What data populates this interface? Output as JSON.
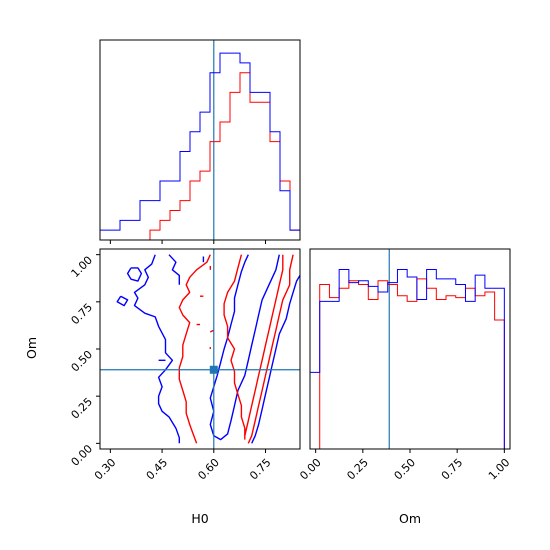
{
  "chart_data": {
    "type": "corner",
    "colors": {
      "series_a": "#0000ff",
      "series_b": "#ff0000",
      "truth": "#1f77b4"
    },
    "truth": {
      "H0": 0.6,
      "Om": 0.39
    },
    "x_ticks_H0": [
      "0.30",
      "0.45",
      "0.60",
      "0.75"
    ],
    "x_tick_values_H0": [
      0.3,
      0.45,
      0.6,
      0.75
    ],
    "x_ticks_Om": [
      "0.00",
      "0.25",
      "0.50",
      "0.75",
      "1.00"
    ],
    "x_tick_values_Om": [
      0.0,
      0.25,
      0.5,
      0.75,
      1.0
    ],
    "y_ticks_Om": [
      "0.00",
      "0.25",
      "0.50",
      "0.75",
      "1.00"
    ],
    "y_tick_values_Om": [
      0.0,
      0.25,
      0.5,
      0.75,
      1.0
    ],
    "xlabel_H0": "H0",
    "xlabel_Om": "Om",
    "ylabel_Om": "Om",
    "H0_range": [
      0.27,
      0.85
    ],
    "Om_range": [
      -0.03,
      1.03
    ],
    "H0_bins": [
      0.27,
      0.299,
      0.328,
      0.357,
      0.386,
      0.415,
      0.444,
      0.473,
      0.502,
      0.531,
      0.56,
      0.589,
      0.618,
      0.647,
      0.676,
      0.705,
      0.734,
      0.763,
      0.792,
      0.821,
      0.85
    ],
    "hist_H0_blue": [
      1,
      1,
      2,
      2,
      4,
      4,
      6,
      6,
      9,
      11,
      13,
      17,
      19,
      19,
      18,
      15,
      15,
      11,
      5,
      1
    ],
    "hist_H0_red": [
      0,
      0,
      0,
      0,
      0,
      1,
      2,
      3,
      4,
      6,
      7,
      10,
      12,
      15,
      17,
      14,
      14,
      10,
      6,
      1
    ],
    "Om_bins": [
      -0.03,
      0.0215,
      0.073,
      0.1245,
      0.176,
      0.2275,
      0.279,
      0.3305,
      0.382,
      0.4335,
      0.485,
      0.5365,
      0.588,
      0.6395,
      0.691,
      0.7425,
      0.794,
      0.8455,
      0.897,
      0.9485,
      1.0
    ],
    "hist_Om_blue": [
      0.41,
      0.79,
      0.79,
      0.96,
      0.89,
      0.9,
      0.87,
      0.84,
      0.89,
      0.96,
      0.92,
      0.8,
      0.96,
      0.91,
      0.91,
      0.88,
      0.79,
      0.93,
      0.86,
      0.86
    ],
    "hist_Om_red": [
      0.0,
      0.88,
      0.81,
      0.86,
      0.9,
      0.88,
      0.8,
      0.9,
      0.88,
      0.82,
      0.79,
      0.91,
      0.86,
      0.8,
      0.82,
      0.81,
      0.86,
      0.82,
      0.84,
      0.69
    ],
    "contours": [
      {
        "series": "series_a",
        "level": "outer-left",
        "points": [
          [
            0.43,
            1.0
          ],
          [
            0.42,
            0.95
          ],
          [
            0.4,
            0.92
          ],
          [
            0.41,
            0.88
          ],
          [
            0.4,
            0.84
          ],
          [
            0.37,
            0.8
          ],
          [
            0.38,
            0.77
          ],
          [
            0.37,
            0.73
          ],
          [
            0.4,
            0.69
          ],
          [
            0.43,
            0.67
          ],
          [
            0.44,
            0.62
          ],
          [
            0.46,
            0.55
          ],
          [
            0.46,
            0.48
          ],
          [
            0.48,
            0.44
          ],
          [
            0.46,
            0.39
          ],
          [
            0.44,
            0.35
          ],
          [
            0.45,
            0.3
          ],
          [
            0.44,
            0.25
          ],
          [
            0.44,
            0.21
          ],
          [
            0.45,
            0.17
          ],
          [
            0.47,
            0.14
          ],
          [
            0.49,
            0.08
          ],
          [
            0.5,
            0.03
          ],
          [
            0.5,
            0.0
          ]
        ]
      },
      {
        "series": "series_a",
        "level": "outer-left-2",
        "points": [
          [
            0.47,
            1.0
          ],
          [
            0.49,
            0.96
          ],
          [
            0.48,
            0.92
          ],
          [
            0.5,
            0.89
          ],
          [
            0.5,
            0.84
          ]
        ]
      },
      {
        "series": "series_a",
        "level": "outer-left-3",
        "points": [
          [
            0.36,
            0.93
          ],
          [
            0.35,
            0.9
          ],
          [
            0.36,
            0.87
          ],
          [
            0.38,
            0.86
          ],
          [
            0.39,
            0.9
          ],
          [
            0.38,
            0.93
          ],
          [
            0.36,
            0.93
          ]
        ]
      },
      {
        "series": "series_a",
        "level": "outer-left-4",
        "points": [
          [
            0.33,
            0.78
          ],
          [
            0.32,
            0.75
          ],
          [
            0.34,
            0.73
          ],
          [
            0.35,
            0.76
          ],
          [
            0.33,
            0.78
          ]
        ]
      },
      {
        "series": "series_a",
        "level": "outer-right",
        "points": [
          [
            0.85,
            0.89
          ],
          [
            0.84,
            0.86
          ],
          [
            0.83,
            0.8
          ],
          [
            0.82,
            0.74
          ],
          [
            0.81,
            0.66
          ],
          [
            0.79,
            0.58
          ],
          [
            0.78,
            0.5
          ],
          [
            0.77,
            0.42
          ],
          [
            0.76,
            0.34
          ],
          [
            0.75,
            0.26
          ],
          [
            0.74,
            0.18
          ],
          [
            0.73,
            0.1
          ],
          [
            0.72,
            0.04
          ],
          [
            0.71,
            0.0
          ]
        ]
      },
      {
        "series": "series_a",
        "level": "inner",
        "points": [
          [
            0.7,
            1.0
          ],
          [
            0.69,
            0.96
          ],
          [
            0.68,
            0.91
          ],
          [
            0.67,
            0.84
          ],
          [
            0.66,
            0.77
          ],
          [
            0.66,
            0.7
          ],
          [
            0.65,
            0.63
          ],
          [
            0.64,
            0.56
          ],
          [
            0.63,
            0.5
          ],
          [
            0.62,
            0.43
          ],
          [
            0.61,
            0.36
          ],
          [
            0.6,
            0.3
          ],
          [
            0.59,
            0.24
          ],
          [
            0.6,
            0.17
          ],
          [
            0.59,
            0.1
          ],
          [
            0.6,
            0.04
          ],
          [
            0.62,
            0.02
          ],
          [
            0.64,
            0.05
          ],
          [
            0.65,
            0.12
          ],
          [
            0.66,
            0.2
          ],
          [
            0.67,
            0.28
          ],
          [
            0.69,
            0.36
          ],
          [
            0.7,
            0.44
          ],
          [
            0.71,
            0.52
          ],
          [
            0.72,
            0.6
          ],
          [
            0.73,
            0.68
          ],
          [
            0.74,
            0.76
          ],
          [
            0.76,
            0.84
          ],
          [
            0.78,
            0.92
          ],
          [
            0.79,
            1.0
          ]
        ]
      },
      {
        "series": "series_a",
        "level": "dash-1",
        "points": [
          [
            0.44,
            0.44
          ],
          [
            0.46,
            0.44
          ]
        ]
      },
      {
        "series": "series_b",
        "level": "outer-left",
        "points": [
          [
            0.59,
            1.0
          ],
          [
            0.58,
            0.96
          ],
          [
            0.55,
            0.92
          ],
          [
            0.53,
            0.88
          ],
          [
            0.52,
            0.84
          ],
          [
            0.53,
            0.8
          ],
          [
            0.51,
            0.76
          ],
          [
            0.5,
            0.72
          ],
          [
            0.51,
            0.68
          ],
          [
            0.53,
            0.64
          ],
          [
            0.52,
            0.58
          ],
          [
            0.51,
            0.52
          ],
          [
            0.51,
            0.46
          ],
          [
            0.5,
            0.4
          ],
          [
            0.5,
            0.34
          ],
          [
            0.51,
            0.28
          ],
          [
            0.52,
            0.22
          ],
          [
            0.52,
            0.16
          ],
          [
            0.53,
            0.1
          ],
          [
            0.54,
            0.05
          ],
          [
            0.55,
            0.0
          ]
        ]
      },
      {
        "series": "series_b",
        "level": "outer-right",
        "points": [
          [
            0.83,
            1.0
          ],
          [
            0.82,
            0.92
          ],
          [
            0.82,
            0.84
          ],
          [
            0.8,
            0.76
          ],
          [
            0.79,
            0.68
          ],
          [
            0.78,
            0.6
          ],
          [
            0.77,
            0.52
          ],
          [
            0.76,
            0.44
          ],
          [
            0.75,
            0.36
          ],
          [
            0.74,
            0.28
          ],
          [
            0.73,
            0.2
          ],
          [
            0.72,
            0.12
          ],
          [
            0.71,
            0.04
          ],
          [
            0.7,
            0.0
          ]
        ]
      },
      {
        "series": "series_b",
        "level": "inner",
        "points": [
          [
            0.68,
            1.0
          ],
          [
            0.67,
            0.93
          ],
          [
            0.66,
            0.86
          ],
          [
            0.64,
            0.8
          ],
          [
            0.63,
            0.74
          ],
          [
            0.63,
            0.68
          ],
          [
            0.64,
            0.62
          ],
          [
            0.64,
            0.56
          ],
          [
            0.66,
            0.5
          ],
          [
            0.65,
            0.44
          ],
          [
            0.66,
            0.38
          ],
          [
            0.66,
            0.32
          ],
          [
            0.67,
            0.26
          ],
          [
            0.68,
            0.2
          ],
          [
            0.68,
            0.14
          ],
          [
            0.69,
            0.08
          ],
          [
            0.69,
            0.02
          ]
        ]
      },
      {
        "series": "series_b",
        "level": "inner-right",
        "points": [
          [
            0.8,
            1.0
          ],
          [
            0.8,
            0.92
          ],
          [
            0.79,
            0.84
          ],
          [
            0.78,
            0.76
          ],
          [
            0.77,
            0.68
          ],
          [
            0.76,
            0.6
          ],
          [
            0.75,
            0.52
          ],
          [
            0.74,
            0.44
          ],
          [
            0.73,
            0.36
          ],
          [
            0.72,
            0.28
          ],
          [
            0.71,
            0.2
          ],
          [
            0.7,
            0.12
          ],
          [
            0.69,
            0.04
          ]
        ]
      },
      {
        "series": "series_b",
        "level": "dash-1",
        "points": [
          [
            0.56,
            0.78
          ],
          [
            0.57,
            0.78
          ]
        ]
      },
      {
        "series": "series_b",
        "level": "dash-2",
        "points": [
          [
            0.59,
            0.59
          ],
          [
            0.6,
            0.6
          ]
        ]
      },
      {
        "series": "series_b",
        "level": "dash-3",
        "points": [
          [
            0.55,
            0.63
          ],
          [
            0.56,
            0.63
          ]
        ]
      },
      {
        "series": "series_b",
        "level": "dash-4",
        "points": [
          [
            0.59,
            0.94
          ],
          [
            0.59,
            0.92
          ]
        ]
      },
      {
        "series": "series_b",
        "level": "dash-5",
        "points": [
          [
            0.59,
            0.51
          ],
          [
            0.59,
            0.5
          ]
        ]
      },
      {
        "series": "series_a",
        "level": "dash-2",
        "points": [
          [
            0.57,
            0.99
          ],
          [
            0.57,
            0.96
          ]
        ]
      }
    ]
  }
}
